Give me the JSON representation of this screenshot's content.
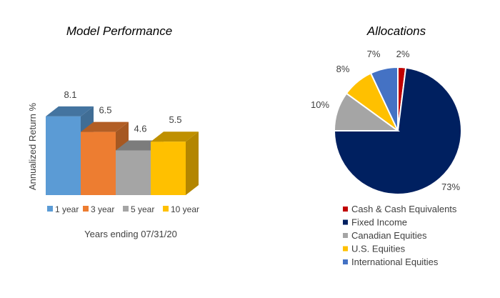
{
  "chart_data": [
    {
      "type": "bar",
      "style": "3d",
      "title": "Model Performance",
      "xlabel": "Years ending 07/31/20",
      "ylabel": "Annualized Return %",
      "categories": [
        "1 year",
        "3 year",
        "5 year",
        "10 year"
      ],
      "values": [
        8.1,
        6.5,
        4.6,
        5.5
      ],
      "data_labels": [
        "8.1",
        "6.5",
        "4.6",
        "5.5"
      ],
      "colors": [
        "#5b9bd5",
        "#ed7d31",
        "#a5a5a5",
        "#ffc000"
      ],
      "legend": "bottom",
      "grid": false
    },
    {
      "type": "pie",
      "title": "Allocations",
      "categories": [
        "Cash & Cash Equivalents",
        "Fixed Income",
        "Canadian Equities",
        "U.S. Equities",
        "International Equities"
      ],
      "values": [
        2,
        73,
        10,
        8,
        7
      ],
      "data_labels": [
        "2%",
        "73%",
        "10%",
        "8%",
        "7%"
      ],
      "colors": [
        "#c00000",
        "#002060",
        "#a5a5a5",
        "#ffc000",
        "#4472c4"
      ],
      "legend": "bottom"
    }
  ]
}
